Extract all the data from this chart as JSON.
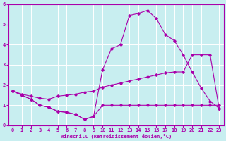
{
  "xlabel": "Windchill (Refroidissement éolien,°C)",
  "xlim": [
    -0.5,
    23.5
  ],
  "ylim": [
    0,
    6
  ],
  "xticks": [
    0,
    1,
    2,
    3,
    4,
    5,
    6,
    7,
    8,
    9,
    10,
    11,
    12,
    13,
    14,
    15,
    16,
    17,
    18,
    19,
    20,
    21,
    22,
    23
  ],
  "yticks": [
    0,
    1,
    2,
    3,
    4,
    5,
    6
  ],
  "bg_color": "#c8eef0",
  "line_color": "#aa00aa",
  "grid_color": "#ffffff",
  "line1_x": [
    0,
    1,
    2,
    3,
    4,
    5,
    6,
    7,
    8,
    9,
    10,
    11,
    12,
    13,
    14,
    15,
    16,
    17,
    18,
    19,
    20,
    21,
    22,
    23
  ],
  "line1_y": [
    1.7,
    1.5,
    1.3,
    1.0,
    0.9,
    0.7,
    0.65,
    0.55,
    0.3,
    0.45,
    1.0,
    1.0,
    1.0,
    1.0,
    1.0,
    1.0,
    1.0,
    1.0,
    1.0,
    1.0,
    1.0,
    1.0,
    1.0,
    1.0
  ],
  "line2_x": [
    0,
    1,
    2,
    3,
    4,
    5,
    6,
    7,
    8,
    9,
    10,
    11,
    12,
    13,
    14,
    15,
    16,
    17,
    18,
    19,
    20,
    21,
    22,
    23
  ],
  "line2_y": [
    1.7,
    1.5,
    1.3,
    1.0,
    0.9,
    0.7,
    0.65,
    0.55,
    0.3,
    0.45,
    2.75,
    3.8,
    4.0,
    5.45,
    5.55,
    5.7,
    5.3,
    4.5,
    4.2,
    3.5,
    2.65,
    1.85,
    1.2,
    0.85
  ],
  "line3_x": [
    0,
    1,
    2,
    3,
    4,
    5,
    6,
    7,
    8,
    9,
    10,
    11,
    12,
    13,
    14,
    15,
    16,
    17,
    18,
    19,
    20,
    21,
    22,
    23
  ],
  "line3_y": [
    1.7,
    1.55,
    1.45,
    1.35,
    1.3,
    1.45,
    1.5,
    1.55,
    1.65,
    1.7,
    1.9,
    2.0,
    2.1,
    2.2,
    2.3,
    2.4,
    2.5,
    2.6,
    2.65,
    2.65,
    3.5,
    3.5,
    3.5,
    0.85
  ]
}
